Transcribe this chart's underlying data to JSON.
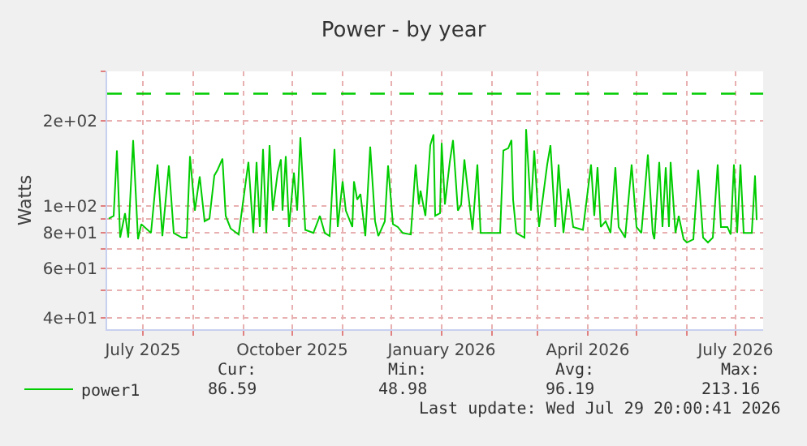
{
  "chart_data": {
    "type": "line",
    "title": "Power - by year",
    "ylabel": "Watts",
    "log": "y",
    "grid": true,
    "legend": "bottom left",
    "marker": "none",
    "line_style": "solid",
    "x": [
      "2025-06-10",
      "2025-06-13",
      "2025-06-15",
      "2025-06-17",
      "2025-06-20",
      "2025-06-22",
      "2025-06-25",
      "2025-06-28",
      "2025-06-30",
      "2025-07-06",
      "2025-07-10",
      "2025-07-13",
      "2025-07-17",
      "2025-07-20",
      "2025-07-25",
      "2025-07-28",
      "2025-07-30",
      "2025-08-02",
      "2025-08-05",
      "2025-08-08",
      "2025-08-11",
      "2025-08-14",
      "2025-08-16",
      "2025-08-19",
      "2025-08-21",
      "2025-08-24",
      "2025-08-29",
      "2025-09-04",
      "2025-09-07",
      "2025-09-09",
      "2025-09-11",
      "2025-09-13",
      "2025-09-15",
      "2025-09-17",
      "2025-09-19",
      "2025-09-22",
      "2025-09-24",
      "2025-09-25",
      "2025-09-27",
      "2025-09-29",
      "2025-10-02",
      "2025-10-04",
      "2025-10-06",
      "2025-10-09",
      "2025-10-14",
      "2025-10-18",
      "2025-10-21",
      "2025-10-24",
      "2025-10-27",
      "2025-10-29",
      "2025-11-01",
      "2025-11-03",
      "2025-11-07",
      "2025-11-08",
      "2025-11-10",
      "2025-11-12",
      "2025-11-15",
      "2025-11-18",
      "2025-11-21",
      "2025-11-23",
      "2025-11-27",
      "2025-11-29",
      "2025-12-02",
      "2025-12-05",
      "2025-12-08",
      "2025-12-13",
      "2025-12-16",
      "2025-12-18",
      "2025-12-19",
      "2025-12-22",
      "2025-12-25",
      "2025-12-27",
      "2025-12-28",
      "2025-12-31",
      "2026-01-01",
      "2026-01-03",
      "2026-01-06",
      "2026-01-08",
      "2026-01-11",
      "2026-01-13",
      "2026-01-15",
      "2026-01-17",
      "2026-01-20",
      "2026-01-23",
      "2026-01-25",
      "2026-01-31",
      "2026-02-06",
      "2026-02-08",
      "2026-02-11",
      "2026-02-13",
      "2026-02-14",
      "2026-02-16",
      "2026-02-21",
      "2026-02-22",
      "2026-02-25",
      "2026-02-27",
      "2026-03-02",
      "2026-03-07",
      "2026-03-09",
      "2026-03-12",
      "2026-03-14",
      "2026-03-17",
      "2026-03-20",
      "2026-03-23",
      "2026-03-29",
      "2026-04-03",
      "2026-04-05",
      "2026-04-07",
      "2026-04-09",
      "2026-04-12",
      "2026-04-15",
      "2026-04-18",
      "2026-04-20",
      "2026-04-24",
      "2026-04-28",
      "2026-05-01",
      "2026-05-04",
      "2026-05-08",
      "2026-05-11",
      "2026-05-12",
      "2026-05-15",
      "2026-05-17",
      "2026-05-19",
      "2026-05-21",
      "2026-05-22",
      "2026-05-25",
      "2026-05-27",
      "2026-05-30",
      "2026-06-01",
      "2026-06-05",
      "2026-06-08",
      "2026-06-11",
      "2026-06-14",
      "2026-06-17",
      "2026-06-20",
      "2026-06-22",
      "2026-06-26",
      "2026-06-28",
      "2026-06-30",
      "2026-07-02",
      "2026-07-04",
      "2026-07-06",
      "2026-07-11",
      "2026-07-13",
      "2026-07-14"
    ],
    "series": [
      {
        "name": "power1",
        "color": "#00cc00",
        "values": [
          90,
          92,
          157,
          77,
          94,
          77,
          171,
          76,
          86,
          80,
          140,
          78,
          139,
          80,
          77,
          77,
          150,
          96,
          127,
          88,
          90,
          128,
          134,
          147,
          92,
          83,
          79,
          143,
          80,
          143,
          84,
          159,
          80,
          164,
          96,
          131,
          146,
          96,
          150,
          84,
          131,
          96,
          175,
          82,
          80,
          92,
          80,
          78,
          159,
          84,
          122,
          96,
          84,
          122,
          105,
          110,
          78,
          162,
          88,
          78,
          88,
          139,
          86,
          84,
          80,
          79,
          140,
          101,
          113,
          92,
          164,
          179,
          92,
          94,
          167,
          101,
          143,
          171,
          96,
          101,
          146,
          115,
          82,
          140,
          80,
          80,
          80,
          157,
          160,
          171,
          105,
          80,
          77,
          187,
          96,
          157,
          84,
          140,
          164,
          84,
          140,
          80,
          115,
          84,
          82,
          140,
          92,
          137,
          84,
          88,
          80,
          137,
          84,
          77,
          140,
          84,
          80,
          152,
          80,
          76,
          143,
          84,
          137,
          84,
          143,
          80,
          92,
          76,
          74,
          76,
          134,
          77,
          74,
          77,
          140,
          84,
          84,
          79,
          140,
          80,
          140,
          80,
          80,
          128,
          89
        ]
      }
    ],
    "xlim": [
      "2025-06-09",
      "2026-07-18"
    ],
    "xticks": [
      {
        "value": "2025-07-01",
        "label": "July 2025"
      },
      {
        "value": "2025-08-01",
        "label": null
      },
      {
        "value": "2025-09-01",
        "label": null
      },
      {
        "value": "2025-10-01",
        "label": "October 2025"
      },
      {
        "value": "2025-11-01",
        "label": null
      },
      {
        "value": "2025-12-01",
        "label": null
      },
      {
        "value": "2026-01-01",
        "label": "January 2026"
      },
      {
        "value": "2026-02-01",
        "label": null
      },
      {
        "value": "2026-03-01",
        "label": null
      },
      {
        "value": "2026-04-01",
        "label": "April 2026"
      },
      {
        "value": "2026-05-01",
        "label": null
      },
      {
        "value": "2026-06-01",
        "label": null
      },
      {
        "value": "2026-07-01",
        "label": "July 2026"
      }
    ],
    "ylim": [
      36.4,
      300
    ],
    "yticks": [
      {
        "value": 40,
        "label": "4e+01"
      },
      {
        "value": 50,
        "label": null
      },
      {
        "value": 60,
        "label": "6e+01"
      },
      {
        "value": 70,
        "label": null
      },
      {
        "value": 80,
        "label": "8e+01"
      },
      {
        "value": 90,
        "label": null
      },
      {
        "value": 100,
        "label": "1e+02"
      },
      {
        "value": 200,
        "label": "2e+02"
      },
      {
        "value": 300,
        "label": null
      }
    ],
    "ref_lines": [
      {
        "axis": "y",
        "value": 250,
        "color": "#00cc00",
        "line_style": "dashed"
      }
    ],
    "annotations": [
      "Cur:",
      "Min:",
      "Avg:",
      "Max:",
      "86.59",
      "48.98",
      "96.19",
      "213.16",
      "Last update: Wed Jul 29 20:00:41 2026"
    ]
  }
}
